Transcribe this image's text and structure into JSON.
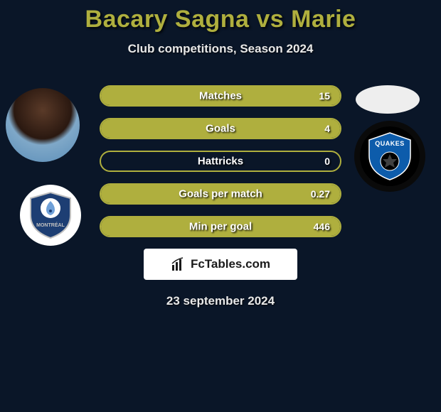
{
  "title_text": "Bacary Sagna vs Marie",
  "title_color": "#afaf3e",
  "subtitle": "Club competitions, Season 2024",
  "date": "23 september 2024",
  "brand": "FcTables.com",
  "bar_color": "#afaf3e",
  "stats": [
    {
      "label": "Matches",
      "right_value": "15",
      "left_pct": 0,
      "right_pct": 100
    },
    {
      "label": "Goals",
      "right_value": "4",
      "left_pct": 0,
      "right_pct": 100
    },
    {
      "label": "Hattricks",
      "right_value": "0",
      "left_pct": 0,
      "right_pct": 0
    },
    {
      "label": "Goals per match",
      "right_value": "0.27",
      "left_pct": 0,
      "right_pct": 100
    },
    {
      "label": "Min per goal",
      "right_value": "446",
      "left_pct": 0,
      "right_pct": 100
    }
  ],
  "player1": {
    "name": "Bacary Sagna"
  },
  "player2": {
    "name": "Marie"
  },
  "club1": {
    "name": "Impact Montréal",
    "primary": "#1d3e73",
    "accent": "#8db4e2"
  },
  "club2": {
    "name": "San Jose Quakes",
    "primary": "#000000",
    "accent": "#0d5cab"
  }
}
